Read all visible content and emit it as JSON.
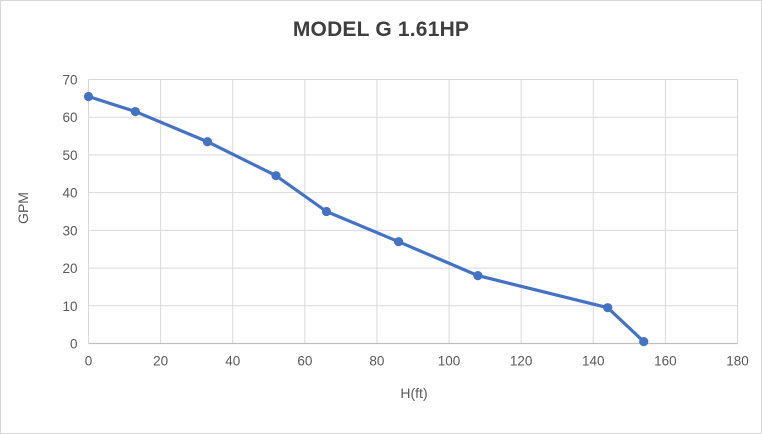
{
  "window": {
    "background_color": "#ffffff",
    "border_color": "#d6d6d6"
  },
  "chart_data": {
    "type": "line",
    "title": "MODEL G 1.61HP",
    "xlabel": "H(ft)",
    "ylabel": "GPM",
    "x": [
      0,
      13,
      33,
      52,
      66,
      86,
      108,
      144,
      154
    ],
    "y": [
      65.5,
      61.5,
      53.5,
      44.5,
      35,
      27,
      18,
      9.5,
      0.5
    ],
    "series_name": "GPM",
    "xlim": [
      0,
      180
    ],
    "ylim": [
      0,
      70
    ],
    "x_ticks": [
      0,
      20,
      40,
      60,
      80,
      100,
      120,
      140,
      160,
      180
    ],
    "y_ticks": [
      0,
      10,
      20,
      30,
      40,
      50,
      60,
      70
    ],
    "grid": true,
    "legend": false,
    "marker": "circle",
    "line_color": "#4472C4",
    "marker_color": "#4472C4",
    "gridline_color": "#D9D9D9",
    "axis_line_color": "#BFBFBF",
    "tick_label_color": "#595959",
    "title_color": "#3f3f3f",
    "axis_title_color": "#595959"
  }
}
